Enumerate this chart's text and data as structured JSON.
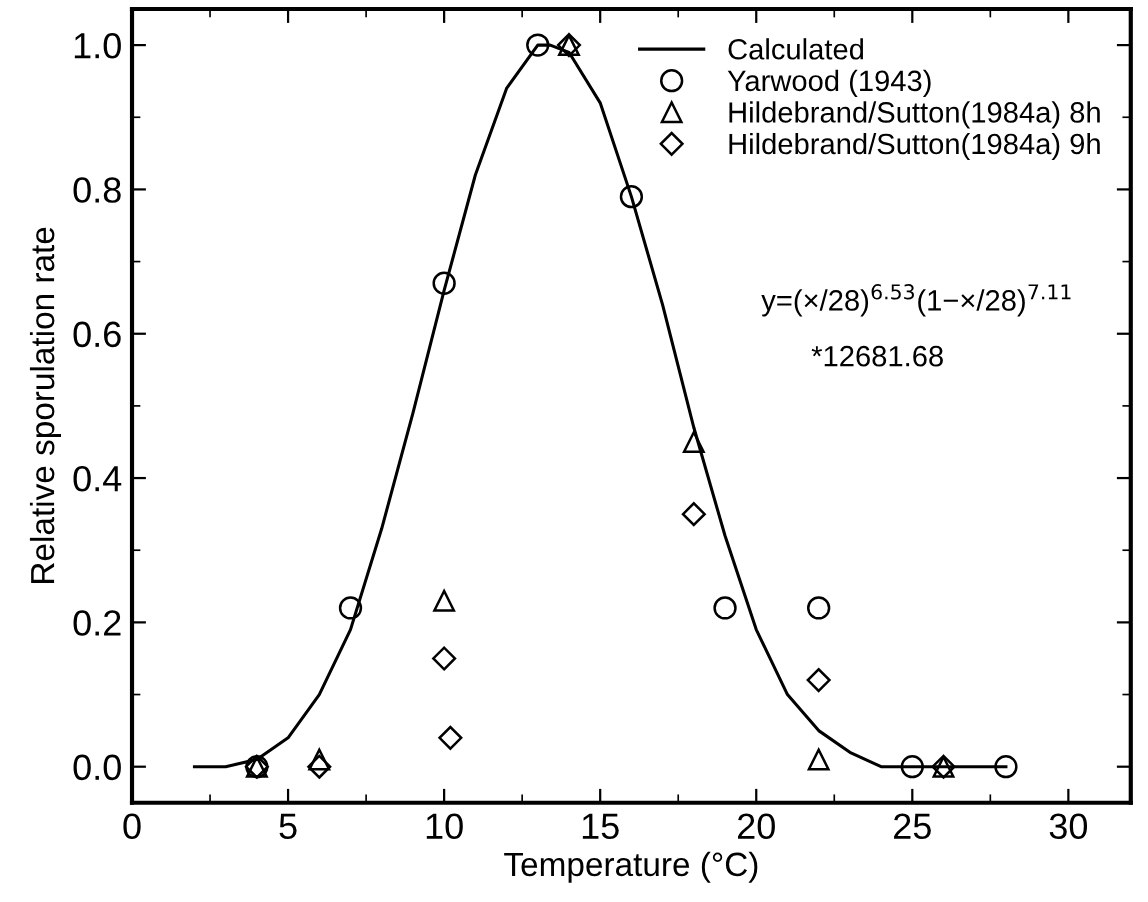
{
  "chart_data": {
    "type": "scatter",
    "xlabel": "Temperature (°C)",
    "ylabel": "Relative sporulation rate",
    "xlim": [
      0,
      32
    ],
    "ylim": [
      -0.05,
      1.05
    ],
    "xticks": [
      0,
      5,
      10,
      15,
      20,
      25,
      30
    ],
    "yticks": [
      {
        "value": 0,
        "label": "0.0"
      },
      {
        "value": 0.2,
        "label": "0.2"
      },
      {
        "value": 0.4,
        "label": "0.4"
      },
      {
        "value": 0.6,
        "label": "0.6"
      },
      {
        "value": 0.8,
        "label": "0.8"
      },
      {
        "value": 1,
        "label": "1.0"
      }
    ],
    "grid": false,
    "legend": "top right",
    "series": [
      {
        "name": "Calculated",
        "type": "line",
        "marker": "none",
        "line_style": "solid",
        "color": "#000000",
        "x": [
          2,
          3,
          4,
          5,
          6,
          7,
          8,
          9,
          10,
          11,
          12,
          13,
          13.4,
          14,
          15,
          16,
          17,
          18,
          19,
          20,
          21,
          22,
          23,
          24,
          25,
          26,
          27,
          28
        ],
        "values": [
          0.0,
          0.0,
          0.01,
          0.04,
          0.1,
          0.19,
          0.33,
          0.49,
          0.66,
          0.82,
          0.94,
          1.0,
          1.0,
          0.99,
          0.92,
          0.79,
          0.64,
          0.47,
          0.32,
          0.19,
          0.1,
          0.05,
          0.02,
          0.0,
          0.0,
          0.0,
          0.0,
          0.0
        ]
      },
      {
        "name": "Yarwood (1943)",
        "marker": "circle",
        "color": "#000000",
        "x": [
          4,
          7,
          10,
          13,
          16,
          19,
          22,
          25,
          28
        ],
        "values": [
          0,
          0.22,
          0.67,
          1.0,
          0.79,
          0.22,
          0.22,
          0,
          0
        ]
      },
      {
        "name": "Hildebrand/Sutton(1984a) 8h",
        "marker": "triangle",
        "color": "#000000",
        "x": [
          4,
          6,
          10,
          14,
          18,
          22,
          26
        ],
        "values": [
          0,
          0.01,
          0.23,
          1.0,
          0.45,
          0.01,
          0
        ]
      },
      {
        "name": "Hildebrand/Sutton(1984a) 9h",
        "marker": "diamond",
        "color": "#000000",
        "x": [
          4,
          6,
          10,
          10.2,
          14,
          18,
          22,
          26
        ],
        "values": [
          0,
          0,
          0.15,
          0.04,
          1.0,
          0.35,
          0.12,
          0
        ]
      }
    ],
    "annotations": [
      "y=(×/28)$^{6.53}$(1−×/28)$^{7.11}$",
      "*12681.68"
    ]
  }
}
